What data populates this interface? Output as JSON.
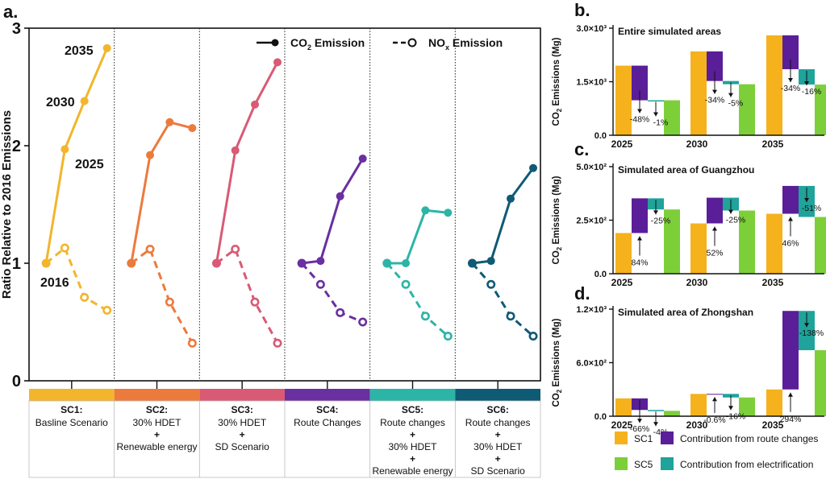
{
  "panel_labels": {
    "a": "a.",
    "b": "b.",
    "c": "c.",
    "d": "d."
  },
  "colors": {
    "SC1": "#f2b52c",
    "SC2": "#ec7a3c",
    "SC3": "#d95a75",
    "SC4": "#6a2fa0",
    "SC5": "#2cb5a6",
    "SC6": "#0f5a75",
    "bar_sc1": "#f5b21c",
    "bar_sc5": "#7dcf3a",
    "bar_route": "#5a1e98",
    "bar_elec": "#1fa39a"
  },
  "chart_data": [
    {
      "type": "line",
      "panel": "a",
      "ylabel": "Ratio Relative to 2016 Emissions",
      "ylim": [
        0,
        3
      ],
      "yticks": [
        "0",
        "1",
        "2",
        "3"
      ],
      "years": [
        "2016",
        "2025",
        "2030",
        "2035"
      ],
      "year_labels": [
        "2016",
        "2025",
        "2030",
        "2035"
      ],
      "legend": {
        "co2_main": "CO",
        "co2_sub": "2",
        "co2_rest": " Emission",
        "nox_main": "NO",
        "nox_sub": "x",
        "nox_rest": " Emission"
      },
      "scenarios": [
        {
          "id": "SC1",
          "code": "SC1:",
          "desc": [
            "Basline Scenario"
          ],
          "co2": [
            1.0,
            1.97,
            2.38,
            2.83
          ],
          "nox": [
            1.0,
            1.13,
            0.71,
            0.6
          ]
        },
        {
          "id": "SC2",
          "code": "SC2:",
          "desc": [
            "30% HDET",
            "+",
            "Renewable energy"
          ],
          "co2": [
            1.0,
            1.92,
            2.2,
            2.15
          ],
          "nox": [
            1.0,
            1.12,
            0.67,
            0.32
          ]
        },
        {
          "id": "SC3",
          "code": "SC3:",
          "desc": [
            "30% HDET",
            "+",
            "SD Scenario"
          ],
          "co2": [
            1.0,
            1.96,
            2.35,
            2.71
          ],
          "nox": [
            1.0,
            1.12,
            0.67,
            0.32
          ]
        },
        {
          "id": "SC4",
          "code": "SC4:",
          "desc": [
            "Route Changes"
          ],
          "co2": [
            1.0,
            1.02,
            1.57,
            1.89
          ],
          "nox": [
            1.0,
            0.82,
            0.58,
            0.5
          ]
        },
        {
          "id": "SC5",
          "code": "SC5:",
          "desc": [
            "Route changes",
            "+",
            "30% HDET",
            "+",
            "Renewable energy"
          ],
          "co2": [
            1.0,
            1.0,
            1.45,
            1.43
          ],
          "nox": [
            1.0,
            0.82,
            0.55,
            0.38
          ]
        },
        {
          "id": "SC6",
          "code": "SC6:",
          "desc": [
            "Route changes",
            "+",
            "30% HDET",
            "+",
            "SD Scenario"
          ],
          "co2": [
            1.0,
            1.02,
            1.55,
            1.81
          ],
          "nox": [
            1.0,
            0.82,
            0.55,
            0.38
          ]
        }
      ]
    },
    {
      "type": "bar",
      "panel": "b",
      "title": "Entire simulated areas",
      "ylabel": "CO2 Emissions (Mg)",
      "ylim": [
        0,
        3000
      ],
      "ytick_values": [
        0,
        1500,
        3000
      ],
      "ytick_labels": [
        "0.0",
        "1.5×10³",
        "3.0×10³"
      ],
      "categories": [
        "2025",
        "2030",
        "2035"
      ],
      "groups": [
        {
          "sc1": 1950,
          "route_to": 980,
          "elec_to": 980,
          "route_label": "-48%",
          "elec_label": "-1%"
        },
        {
          "sc1": 2350,
          "route_to": 1520,
          "elec_to": 1430,
          "route_label": "-34%",
          "elec_label": "-5%"
        },
        {
          "sc1": 2800,
          "route_to": 1850,
          "elec_to": 1420,
          "route_label": "-34%",
          "elec_label": "-16%"
        }
      ]
    },
    {
      "type": "bar",
      "panel": "c",
      "title": "Simulated area of Guangzhou",
      "ylabel": "CO2 Emissions (Mg)",
      "ylim": [
        0,
        500
      ],
      "ytick_values": [
        0,
        250,
        500
      ],
      "ytick_labels": [
        "0.0",
        "2.5×10²",
        "5.0×10²"
      ],
      "categories": [
        "2025",
        "2030",
        "2035"
      ],
      "groups": [
        {
          "sc1": 190,
          "route_to": 352,
          "elec_to": 300,
          "route_label": "84%",
          "elec_label": "-25%"
        },
        {
          "sc1": 235,
          "route_to": 355,
          "elec_to": 295,
          "route_label": "52%",
          "elec_label": "-25%"
        },
        {
          "sc1": 280,
          "route_to": 410,
          "elec_to": 265,
          "route_label": "46%",
          "elec_label": "-51%"
        }
      ]
    },
    {
      "type": "bar",
      "panel": "d",
      "title": "Simulated area of Zhongshan",
      "ylabel": "CO2 Emissions (Mg)",
      "ylim": [
        0,
        1200
      ],
      "ytick_values": [
        0,
        600,
        1200
      ],
      "ytick_labels": [
        "0.0",
        "6.0×10²",
        "1.2×10³"
      ],
      "categories": [
        "2025",
        "2030",
        "2035"
      ],
      "groups": [
        {
          "sc1": 200,
          "route_to": 70,
          "elec_to": 60,
          "route_label": "-66%",
          "elec_label": "-4%"
        },
        {
          "sc1": 250,
          "route_to": 250,
          "elec_to": 210,
          "route_label": "-0.6%",
          "elec_label": "-16%"
        },
        {
          "sc1": 300,
          "route_to": 1180,
          "elec_to": 740,
          "route_label": "294%",
          "elec_label": "-138%"
        }
      ]
    }
  ],
  "legend_bd": [
    {
      "key": "bar_sc1",
      "label": "SC1"
    },
    {
      "key": "bar_route",
      "label": "Contribution from route changes"
    },
    {
      "key": "bar_sc5",
      "label": "SC5"
    },
    {
      "key": "bar_elec",
      "label": "Contribution from electrification"
    }
  ]
}
